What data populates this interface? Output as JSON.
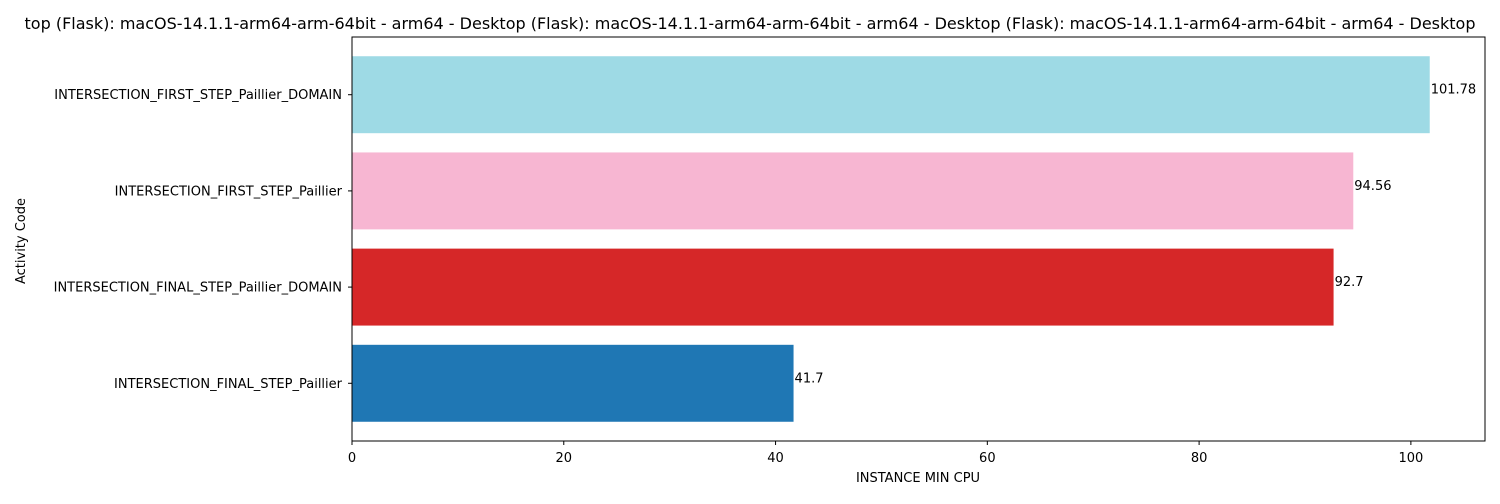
{
  "chart_data": {
    "type": "bar",
    "orientation": "horizontal",
    "title": "top (Flask): macOS-14.1.1-arm64-arm-64bit - arm64 - Desktop (Flask): macOS-14.1.1-arm64-arm-64bit - arm64 - Desktop (Flask): macOS-14.1.1-arm64-arm-64bit - arm64 - Desktop",
    "xlabel": "INSTANCE MIN CPU",
    "ylabel": "Activity Code",
    "xlim": [
      0,
      107
    ],
    "x_ticks": [
      0,
      20,
      40,
      60,
      80,
      100
    ],
    "grid": false,
    "categories": [
      "INTERSECTION_FIRST_STEP_Paillier_DOMAIN",
      "INTERSECTION_FIRST_STEP_Paillier",
      "INTERSECTION_FINAL_STEP_Paillier_DOMAIN",
      "INTERSECTION_FINAL_STEP_Paillier"
    ],
    "values": [
      101.78,
      94.56,
      92.7,
      41.7
    ],
    "value_labels": [
      "101.78",
      "94.56",
      "92.7",
      "41.7"
    ],
    "colors": [
      "#9edae5",
      "#f7b6d2",
      "#d62728",
      "#1f77b4"
    ]
  }
}
